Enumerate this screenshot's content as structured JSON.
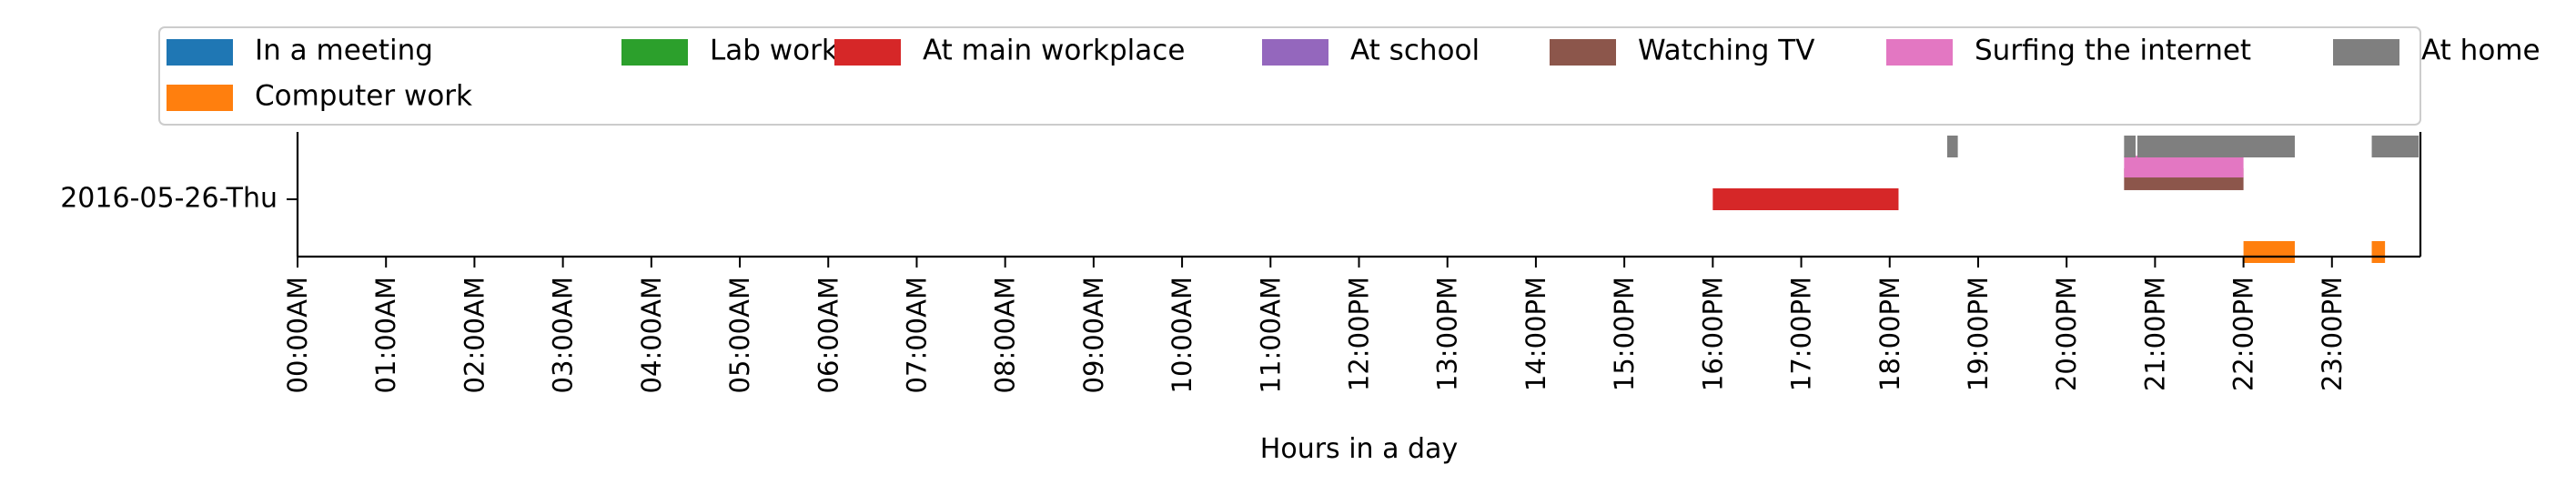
{
  "chart_data": {
    "type": "timeline",
    "xlabel": "Hours in a day",
    "ylabel": "",
    "xlim": [
      0,
      24
    ],
    "x_ticks": [
      "00:00AM",
      "01:00AM",
      "02:00AM",
      "03:00AM",
      "04:00AM",
      "05:00AM",
      "06:00AM",
      "07:00AM",
      "08:00AM",
      "09:00AM",
      "10:00AM",
      "11:00AM",
      "12:00PM",
      "13:00PM",
      "14:00PM",
      "15:00PM",
      "16:00PM",
      "17:00PM",
      "18:00PM",
      "19:00PM",
      "20:00PM",
      "21:00PM",
      "22:00PM",
      "23:00PM"
    ],
    "categories": [
      "2016-05-26-Thu"
    ],
    "legend_position": "top",
    "series": [
      {
        "name": "In a meeting",
        "color": "#1f77b4",
        "lane": 0,
        "intervals": []
      },
      {
        "name": "Computer work",
        "color": "#ff7f0e",
        "lane": -1,
        "intervals": [
          [
            22.0,
            22.58
          ],
          [
            23.45,
            23.6
          ]
        ]
      },
      {
        "name": "Lab work",
        "color": "#2ca02c",
        "lane": 0,
        "intervals": []
      },
      {
        "name": "At main workplace",
        "color": "#d62728",
        "lane": 0,
        "intervals": [
          [
            16.0,
            18.1
          ]
        ]
      },
      {
        "name": "At school",
        "color": "#9467bd",
        "lane": 0,
        "intervals": []
      },
      {
        "name": "Watching TV",
        "color": "#8c564b",
        "lane": 0.38,
        "intervals": [
          [
            20.65,
            22.0
          ]
        ]
      },
      {
        "name": "Surfing the internet",
        "color": "#e377c2",
        "lane": 0.62,
        "intervals": [
          [
            20.65,
            22.0
          ]
        ]
      },
      {
        "name": "At home",
        "color": "#7f7f7f",
        "lane": 1,
        "intervals": [
          [
            18.65,
            18.77
          ],
          [
            20.65,
            20.78
          ],
          [
            20.8,
            22.58
          ],
          [
            23.45,
            23.98
          ]
        ]
      }
    ]
  }
}
